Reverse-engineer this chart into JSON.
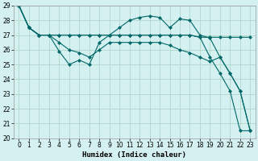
{
  "xlabel": "Humidex (Indice chaleur)",
  "bg_color": "#d4f0f0",
  "grid_color": "#b0d8cc",
  "line_color": "#006868",
  "xlim": [
    -0.5,
    23.5
  ],
  "ylim": [
    20,
    29
  ],
  "yticks": [
    20,
    21,
    22,
    23,
    24,
    25,
    26,
    27,
    28,
    29
  ],
  "xticks": [
    0,
    1,
    2,
    3,
    4,
    5,
    6,
    7,
    8,
    9,
    10,
    11,
    12,
    13,
    14,
    15,
    16,
    17,
    18,
    19,
    20,
    21,
    22,
    23
  ],
  "series": [
    [
      29.0,
      27.5,
      27.0,
      27.0,
      25.9,
      25.0,
      25.3,
      25.0,
      26.5,
      27.0,
      27.5,
      28.0,
      28.2,
      28.3,
      28.2,
      27.5,
      28.1,
      28.0,
      27.0,
      26.8,
      25.5,
      24.4,
      23.2,
      20.5
    ],
    [
      29.0,
      27.5,
      27.0,
      27.0,
      27.0,
      27.0,
      27.0,
      27.0,
      27.0,
      27.0,
      27.0,
      27.0,
      27.0,
      27.0,
      27.0,
      27.0,
      27.0,
      27.0,
      26.85,
      26.85,
      26.85,
      26.85,
      26.85,
      26.85
    ],
    [
      29.0,
      27.5,
      27.0,
      27.0,
      27.0,
      27.0,
      27.0,
      27.0,
      27.0,
      27.0,
      27.0,
      27.0,
      27.0,
      27.0,
      27.0,
      27.0,
      27.0,
      27.0,
      26.85,
      25.5,
      24.4,
      23.2,
      20.5,
      20.5
    ],
    [
      29.0,
      27.5,
      27.0,
      27.0,
      26.5,
      26.0,
      25.8,
      25.5,
      26.0,
      26.5,
      26.5,
      26.5,
      26.5,
      26.5,
      26.5,
      26.3,
      26.0,
      25.8,
      25.5,
      25.2,
      25.5,
      24.4,
      23.2,
      20.5
    ]
  ],
  "marker": "D",
  "markersize": 2.0,
  "linewidth": 0.8,
  "tick_fontsize": 5.5,
  "xlabel_fontsize": 6.5
}
